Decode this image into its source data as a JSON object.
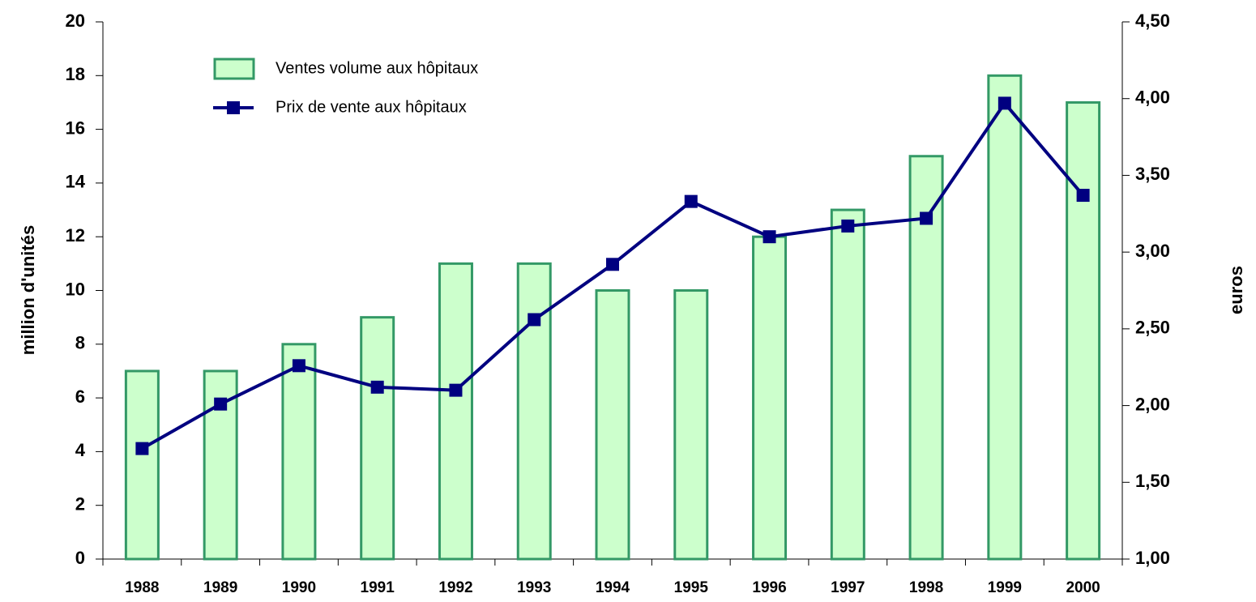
{
  "chart_data": {
    "type": "bar_line",
    "categories": [
      "1988",
      "1989",
      "1990",
      "1991",
      "1992",
      "1993",
      "1994",
      "1995",
      "1996",
      "1997",
      "1998",
      "1999",
      "2000"
    ],
    "series": [
      {
        "name": "Ventes volume aux hôpitaux",
        "type": "bar",
        "color": "#ccffcc",
        "edge_color": "#339966",
        "values": [
          7,
          7,
          8,
          9,
          11,
          11,
          10,
          10,
          12,
          13,
          15,
          18,
          17
        ]
      },
      {
        "name": "Prix de vente aux hôpitaux",
        "type": "line",
        "axis": "y2",
        "color": "#000080",
        "values": [
          1.72,
          2.01,
          2.26,
          2.12,
          2.1,
          2.56,
          2.92,
          3.33,
          3.1,
          3.17,
          3.22,
          3.97,
          3.37
        ]
      }
    ],
    "ylabel": "million d'unités",
    "y2label": "euros",
    "ylim": [
      0,
      20
    ],
    "yticks": [
      0,
      2,
      4,
      6,
      8,
      10,
      12,
      14,
      16,
      18,
      20
    ],
    "y2lim": [
      1,
      4.5
    ],
    "y2ticks": [
      {
        "value": 1,
        "label": "1,00"
      },
      {
        "value": 1.5,
        "label": "1,50"
      },
      {
        "value": 2,
        "label": "2,00"
      },
      {
        "value": 2.5,
        "label": "2,50"
      },
      {
        "value": 3,
        "label": "3,00"
      },
      {
        "value": 3.5,
        "label": "3,50"
      },
      {
        "value": 4,
        "label": "4,00"
      },
      {
        "value": 4.5,
        "label": "4,50"
      }
    ],
    "legend": "top-left",
    "grid": false
  }
}
